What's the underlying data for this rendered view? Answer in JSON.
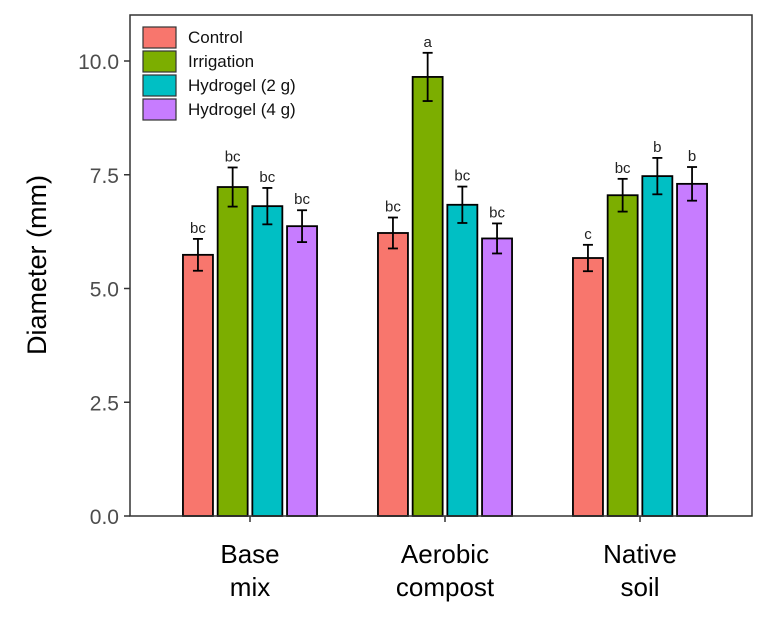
{
  "chart_data": {
    "type": "bar",
    "title": "",
    "xlabel": "",
    "ylabel": "Diameter (mm)",
    "ylim": [
      0,
      11
    ],
    "yticks": [
      "0.0",
      "2.5",
      "5.0",
      "7.5",
      "10.0"
    ],
    "ytick_values": [
      0,
      2.5,
      5,
      7.5,
      10
    ],
    "categories": [
      [
        "Base",
        "mix"
      ],
      [
        "Aerobic",
        "compost"
      ],
      [
        "Native",
        "soil"
      ]
    ],
    "legend_position": "top-left",
    "grid": false,
    "series": [
      {
        "name": "Control",
        "color": "#F8766D",
        "values": [
          5.74,
          6.22,
          5.67
        ],
        "errors": [
          0.35,
          0.34,
          0.29
        ],
        "letters": [
          "bc",
          "bc",
          "c"
        ]
      },
      {
        "name": "Irrigation",
        "color": "#7CAE00",
        "values": [
          7.23,
          9.65,
          7.05
        ],
        "errors": [
          0.43,
          0.53,
          0.36
        ],
        "letters": [
          "bc",
          "a",
          "bc"
        ]
      },
      {
        "name": "Hydrogel (2 g)",
        "color": "#00BFC4",
        "values": [
          6.81,
          6.84,
          7.47
        ],
        "errors": [
          0.4,
          0.4,
          0.4
        ],
        "letters": [
          "bc",
          "bc",
          "b"
        ]
      },
      {
        "name": "Hydrogel (4 g)",
        "color": "#C77CFF",
        "values": [
          6.37,
          6.1,
          7.3
        ],
        "errors": [
          0.35,
          0.33,
          0.37
        ],
        "letters": [
          "bc",
          "bc",
          "b"
        ]
      }
    ]
  }
}
